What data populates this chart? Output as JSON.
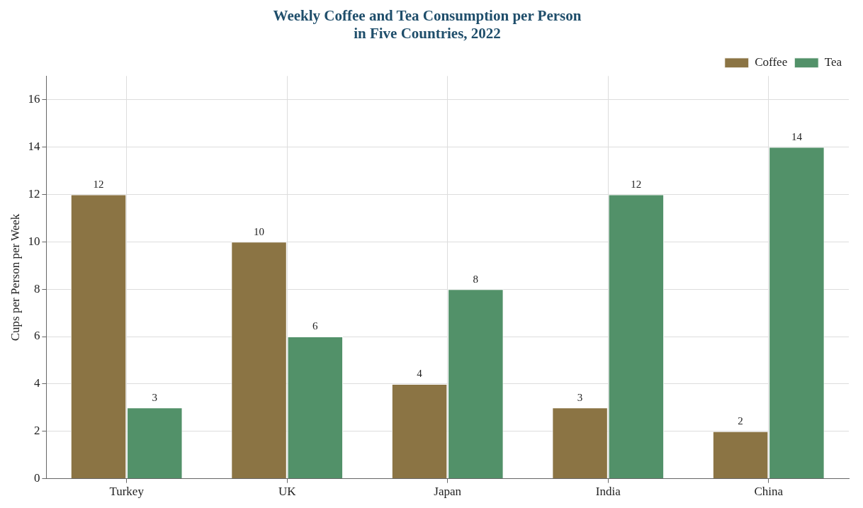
{
  "chart_data": {
    "type": "bar",
    "title": "Weekly Coffee and Tea Consumption per Person\nin Five Countries, 2022",
    "ylabel": "Cups per Person per Week",
    "categories": [
      "Turkey",
      "UK",
      "Japan",
      "India",
      "China"
    ],
    "series": [
      {
        "name": "Coffee",
        "color": "#8b7444",
        "values": [
          12,
          10,
          4,
          3,
          2
        ]
      },
      {
        "name": "Tea",
        "color": "#529169",
        "values": [
          3,
          6,
          8,
          12,
          14
        ]
      }
    ],
    "ylim": [
      0,
      17
    ],
    "yticks": [
      0,
      2,
      4,
      6,
      8,
      10,
      12,
      14,
      16
    ],
    "grid": true,
    "legend": "top right",
    "data_labels": true
  }
}
